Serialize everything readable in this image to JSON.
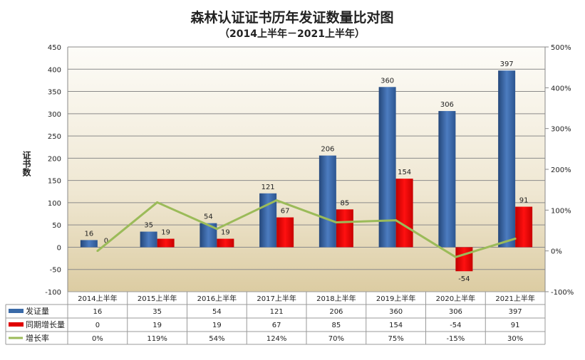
{
  "chart_data": {
    "type": "bar",
    "title": "森林认证证书历年发证数量比对图",
    "subtitle": "（2014上半年－2021上半年）",
    "ylabel": "证书数",
    "ylim": [
      -100,
      450
    ],
    "yticks": [
      -100,
      -50,
      0,
      50,
      100,
      150,
      200,
      250,
      300,
      350,
      400,
      450
    ],
    "y2lim": [
      -100,
      500
    ],
    "y2ticks": [
      "-100%",
      "0%",
      "100%",
      "200%",
      "300%",
      "400%",
      "500%"
    ],
    "y2tick_values": [
      -100,
      0,
      100,
      200,
      300,
      400,
      500
    ],
    "grid": true,
    "legend": "data-table",
    "categories": [
      "2014上半年",
      "2015上半年",
      "2016上半年",
      "2017上半年",
      "2018上半年",
      "2019上半年",
      "2020上半年",
      "2021上半年"
    ],
    "series": [
      {
        "name": "发证量",
        "type": "bar",
        "axis": "left",
        "color": "#3a6aa8",
        "values": [
          16,
          35,
          54,
          121,
          206,
          360,
          306,
          397
        ]
      },
      {
        "name": "同期增长量",
        "type": "bar",
        "axis": "left",
        "color": "#e00000",
        "values": [
          0,
          19,
          19,
          67,
          85,
          154,
          -54,
          91
        ]
      },
      {
        "name": "增长率",
        "type": "line",
        "axis": "right",
        "color": "#9bbb59",
        "values": [
          0,
          119,
          54,
          124,
          70,
          75,
          -15,
          30
        ],
        "labels": [
          "0%",
          "119%",
          "54%",
          "124%",
          "70%",
          "75%",
          "-15%",
          "30%"
        ]
      }
    ]
  }
}
